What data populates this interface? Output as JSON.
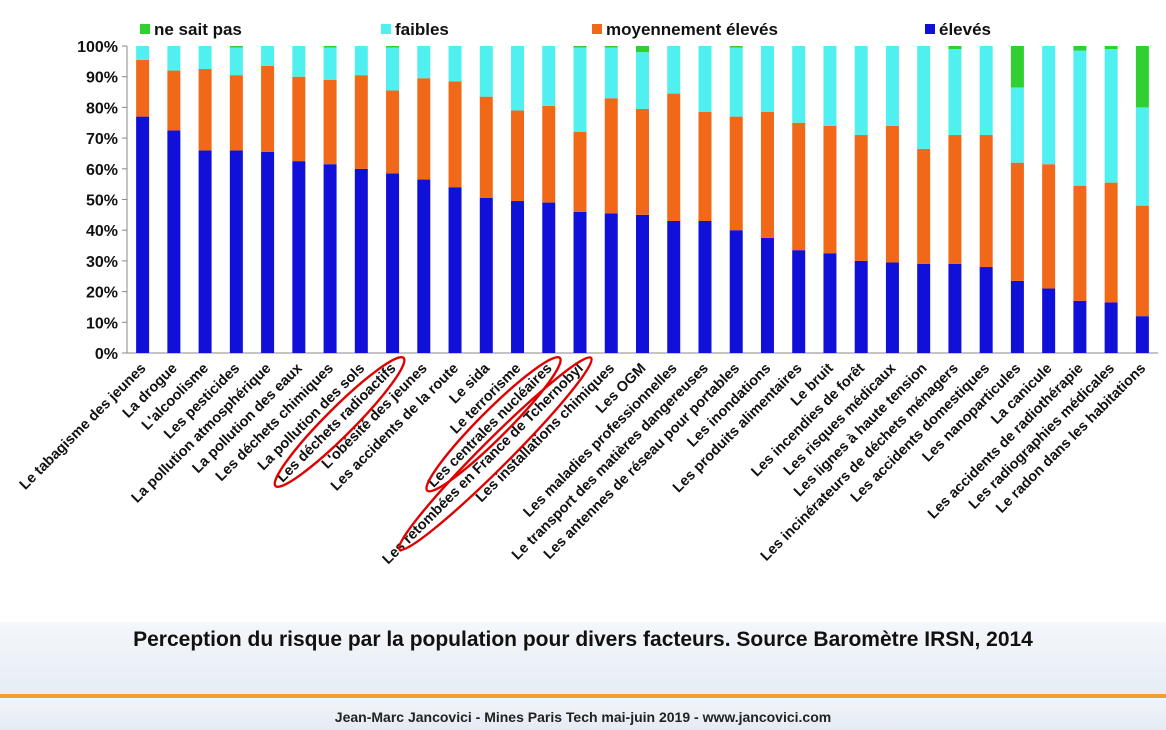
{
  "chart_data": {
    "type": "bar",
    "stacked": true,
    "percent_stacked": true,
    "ylim": [
      0,
      100
    ],
    "yticks": [
      "0%",
      "10%",
      "20%",
      "30%",
      "40%",
      "50%",
      "60%",
      "70%",
      "80%",
      "90%",
      "100%"
    ],
    "grid": false,
    "legend_position": "top",
    "categories": [
      "Le tabagisme des jeunes",
      "La drogue",
      "L'alcoolisme",
      "Les pesticides",
      "La pollution atmosphérique",
      "La pollution des eaux",
      "Les déchets chimiques",
      "La pollution des sols",
      "Les déchets radioactifs",
      "L'obésité des jeunes",
      "Les accidents de la route",
      "Le sida",
      "Le terrorisme",
      "Les centrales nucléaires",
      "Les retombées en France de Tchernobyl",
      "Les installations chimiques",
      "Les OGM",
      "Les maladies professionnelles",
      "Le transport des matières dangereuses",
      "Les antennes de réseau pour portables",
      "Les inondations",
      "Les produits alimentaires",
      "Le bruit",
      "Les incendies de forêt",
      "Les risques médicaux",
      "Les lignes à haute tension",
      "Les incinérateurs de déchets ménagers",
      "Les accidents domestiques",
      "Les nanoparticules",
      "La canicule",
      "Les accidents de radiothérapie",
      "Les radiographies médicales",
      "Le radon dans les habitations"
    ],
    "series": [
      {
        "name": "élevés",
        "color": "#1010d8",
        "values": [
          77,
          72.5,
          66,
          66,
          65.5,
          62.5,
          61.5,
          60,
          58.5,
          56.5,
          54,
          50.5,
          49.5,
          49,
          46,
          45.5,
          45,
          43,
          43,
          40,
          37.5,
          33.5,
          32.5,
          30,
          29.5,
          29,
          29,
          28,
          23.5,
          21,
          17,
          16.5,
          12
        ]
      },
      {
        "name": "moyennement élevés",
        "color": "#f06818",
        "values": [
          18.5,
          19.5,
          26.5,
          24.5,
          28,
          27.5,
          27.5,
          30.5,
          27,
          33,
          34.5,
          33,
          29.5,
          31.5,
          26,
          37.5,
          34.5,
          41.5,
          35.5,
          37,
          41,
          41.5,
          41.5,
          41,
          44.5,
          37.5,
          42,
          43,
          38.5,
          40.5,
          37.5,
          39,
          36
        ]
      },
      {
        "name": "faibles",
        "color": "#50f0f0",
        "values": [
          4.5,
          8,
          7.5,
          9,
          6.5,
          10,
          10.5,
          9.5,
          14,
          10.5,
          11.5,
          16.5,
          21,
          19.5,
          27.5,
          16.5,
          18.5,
          15.5,
          21.5,
          22.5,
          21.5,
          25,
          26,
          29,
          26,
          33.5,
          28,
          29,
          24.5,
          38.5,
          44,
          43.5,
          32
        ]
      },
      {
        "name": "ne sait pas",
        "color": "#30d030",
        "values": [
          0,
          0,
          0,
          0.5,
          0,
          0,
          0.5,
          0,
          0.5,
          0,
          0,
          0,
          0,
          0,
          0.5,
          0.5,
          2,
          0,
          0,
          0.5,
          0,
          0,
          0,
          0,
          0,
          0,
          1,
          0,
          13.5,
          0,
          1.5,
          1,
          20
        ]
      }
    ],
    "highlighted_categories": [
      "Les déchets radioactifs",
      "Les centrales nucléaires",
      "Les retombées en France de Tchernobyl"
    ],
    "highlight_color": "#e00000"
  },
  "caption": "Perception du risque par la population pour divers facteurs. Source Baromètre IRSN, 2014",
  "footer": "Jean-Marc Jancovici - Mines Paris Tech mai-juin 2019 - www.jancovici.com"
}
